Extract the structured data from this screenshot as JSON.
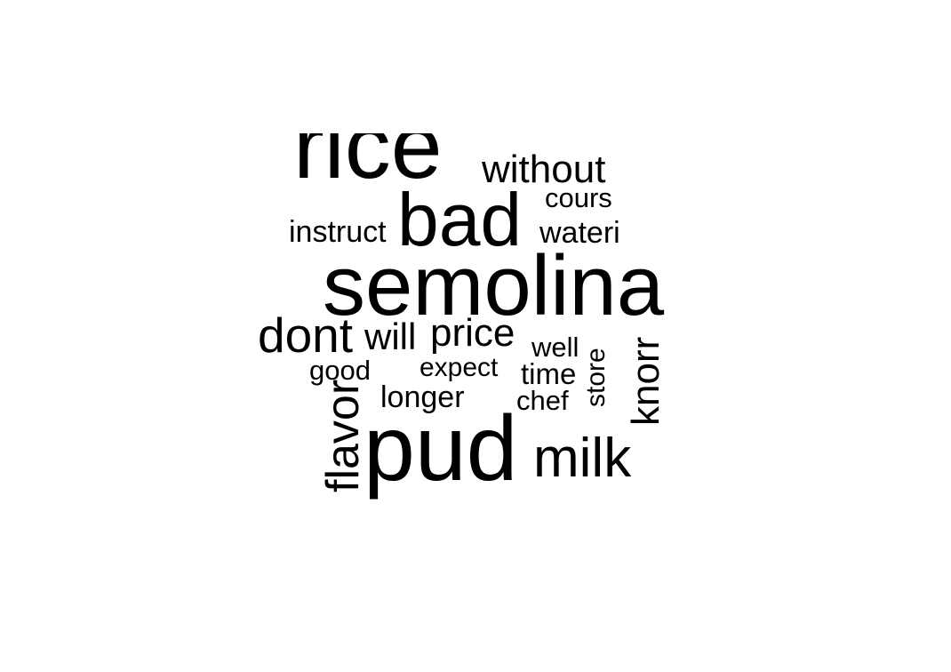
{
  "chart_data": {
    "type": "wordcloud",
    "words": [
      {
        "text": "rice",
        "weight": 100
      },
      {
        "text": "semolina",
        "weight": 92
      },
      {
        "text": "pud",
        "weight": 100
      },
      {
        "text": "bad",
        "weight": 80
      },
      {
        "text": "milk",
        "weight": 60
      },
      {
        "text": "dont",
        "weight": 53
      },
      {
        "text": "flavor",
        "weight": 50
      },
      {
        "text": "without",
        "weight": 42
      },
      {
        "text": "price",
        "weight": 42
      },
      {
        "text": "knorr",
        "weight": 42
      },
      {
        "text": "will",
        "weight": 40
      },
      {
        "text": "instruct",
        "weight": 33
      },
      {
        "text": "wateri",
        "weight": 33
      },
      {
        "text": "longer",
        "weight": 33
      },
      {
        "text": "time",
        "weight": 32
      },
      {
        "text": "cours",
        "weight": 30
      },
      {
        "text": "well",
        "weight": 30
      },
      {
        "text": "good",
        "weight": 30
      },
      {
        "text": "chef",
        "weight": 30
      },
      {
        "text": "expect",
        "weight": 29
      },
      {
        "text": "store",
        "weight": 29
      }
    ],
    "color": "#000000",
    "background": "#ffffff"
  }
}
